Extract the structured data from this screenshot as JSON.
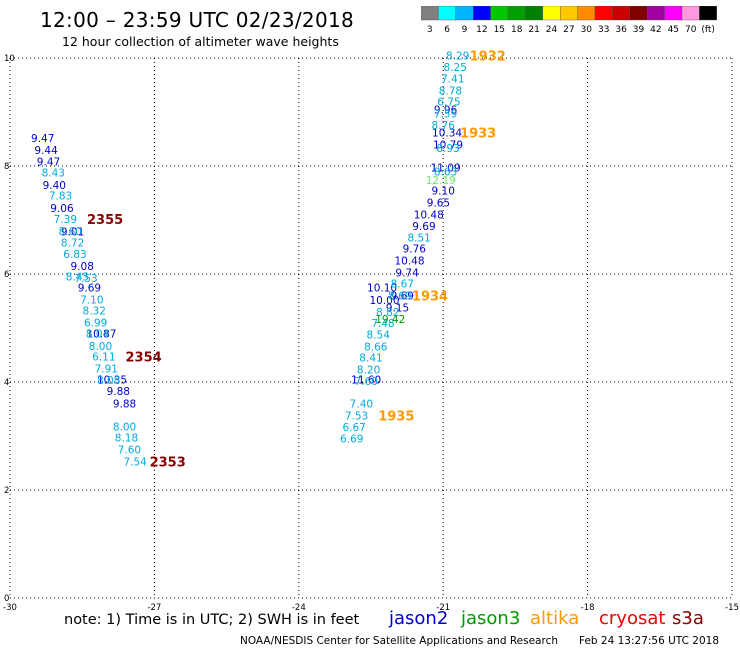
{
  "header": {
    "title": "12:00 – 23:59 UTC 02/23/2018",
    "subtitle": "12 hour collection of altimeter wave heights"
  },
  "colorbar": {
    "colors": [
      "#7f7f7f",
      "#00ffff",
      "#00b4ff",
      "#0000ff",
      "#00c800",
      "#00a000",
      "#008000",
      "#ffff00",
      "#ffc800",
      "#ff8c00",
      "#ff0000",
      "#c80000",
      "#800000",
      "#a000a0",
      "#ff00ff",
      "#ff99dd",
      "#000000"
    ],
    "labels": [
      "3",
      "6",
      "9",
      "12",
      "15",
      "18",
      "21",
      "24",
      "27",
      "30",
      "33",
      "36",
      "39",
      "42",
      "45",
      "70",
      "(ft)"
    ]
  },
  "footer": {
    "note": "note:  1) Time is in UTC;  2) SWH is in feet",
    "credit": "NOAA/NESDIS Center for Satellite Applications and Research",
    "timestamp": "Feb 24 13:27:56 UTC 2018"
  },
  "satellites": [
    {
      "name": "jason2",
      "color": "#0000cc"
    },
    {
      "name": "jason3",
      "color": "#009900"
    },
    {
      "name": "altika",
      "color": "#ff9900"
    },
    {
      "name": "cryosat",
      "color": "#ee0000"
    },
    {
      "name": "s3a",
      "color": "#880000"
    }
  ],
  "chart_data": {
    "type": "scatter",
    "title": "12:00 – 23:59 UTC 02/23/2018",
    "subtitle": "12 hour collection of altimeter wave heights",
    "xlabel": "",
    "ylabel": "",
    "xlim": [
      -30,
      -15
    ],
    "ylim": [
      0,
      10
    ],
    "x_ticks": [
      "-30",
      "-27",
      "-24",
      "-21",
      "-18",
      "-15"
    ],
    "y_ticks": [
      "0",
      "2",
      "4",
      "6",
      "8",
      "10"
    ],
    "grid": true,
    "series": [
      {
        "name": "jason2",
        "color": "#0000cc",
        "points": [
          {
            "x": -29.32,
            "y": 8.52,
            "v": "9.47"
          },
          {
            "x": -29.25,
            "y": 8.3,
            "v": "9.44"
          },
          {
            "x": -29.2,
            "y": 8.08,
            "v": "9.47"
          },
          {
            "x": -29.08,
            "y": 7.65,
            "v": "9.40"
          },
          {
            "x": -28.92,
            "y": 7.22,
            "v": "9.06"
          },
          {
            "x": -28.7,
            "y": 6.79,
            "v": "9.01"
          },
          {
            "x": -28.5,
            "y": 6.15,
            "v": "9.08"
          },
          {
            "x": -28.35,
            "y": 5.75,
            "v": "9.69"
          },
          {
            "x": -28.1,
            "y": 4.9,
            "v": "10.87"
          },
          {
            "x": -27.88,
            "y": 4.05,
            "v": "10.35"
          },
          {
            "x": -27.75,
            "y": 3.83,
            "v": "9.88"
          },
          {
            "x": -22.27,
            "y": 5.75,
            "v": "10.10"
          },
          {
            "x": -22.22,
            "y": 5.52,
            "v": "10.00"
          },
          {
            "x": -22.6,
            "y": 4.05,
            "v": "11.60"
          },
          {
            "x": -20.95,
            "y": 9.05,
            "v": "9.96"
          },
          {
            "x": -20.92,
            "y": 8.62,
            "v": "10.34"
          },
          {
            "x": -20.9,
            "y": 8.4,
            "v": "10.79"
          },
          {
            "x": -20.95,
            "y": 7.97,
            "v": "11.09"
          },
          {
            "x": -21.0,
            "y": 7.55,
            "v": "9.10"
          },
          {
            "x": -21.1,
            "y": 7.32,
            "v": "9.65"
          },
          {
            "x": -21.3,
            "y": 7.1,
            "v": "10.48"
          },
          {
            "x": -21.4,
            "y": 6.89,
            "v": "9.69"
          },
          {
            "x": -21.6,
            "y": 6.47,
            "v": "9.76"
          },
          {
            "x": -21.7,
            "y": 6.25,
            "v": "10.48"
          },
          {
            "x": -21.75,
            "y": 6.03,
            "v": "9.74"
          },
          {
            "x": -21.85,
            "y": 5.6,
            "v": "9.69"
          },
          {
            "x": -21.95,
            "y": 5.38,
            "v": "9.15"
          },
          {
            "x": -27.62,
            "y": 3.6,
            "v": "9.88"
          }
        ]
      },
      {
        "name": "jason2-light",
        "color": "#00aadd",
        "points": [
          {
            "x": -29.1,
            "y": 7.88,
            "v": "8.43"
          },
          {
            "x": -28.95,
            "y": 7.45,
            "v": "7.83"
          },
          {
            "x": -28.85,
            "y": 7.02,
            "v": "7.39"
          },
          {
            "x": -28.75,
            "y": 6.8,
            "v": "8.60"
          },
          {
            "x": -28.7,
            "y": 6.58,
            "v": "8.72"
          },
          {
            "x": -28.65,
            "y": 6.37,
            "v": "6.83"
          },
          {
            "x": -28.6,
            "y": 5.95,
            "v": "8.45"
          },
          {
            "x": -28.42,
            "y": 5.93,
            "v": "7.53"
          },
          {
            "x": -28.3,
            "y": 5.53,
            "v": "7.10"
          },
          {
            "x": -28.25,
            "y": 5.32,
            "v": "8.32"
          },
          {
            "x": -28.22,
            "y": 5.1,
            "v": "6.99"
          },
          {
            "x": -28.18,
            "y": 4.9,
            "v": "8.04"
          },
          {
            "x": -28.12,
            "y": 4.67,
            "v": "8.00"
          },
          {
            "x": -28.05,
            "y": 4.47,
            "v": "6.11"
          },
          {
            "x": -28.0,
            "y": 4.25,
            "v": "7.91"
          },
          {
            "x": -27.95,
            "y": 4.04,
            "v": "8.08"
          },
          {
            "x": -27.62,
            "y": 3.18,
            "v": "8.00"
          },
          {
            "x": -27.58,
            "y": 2.97,
            "v": "8.18"
          },
          {
            "x": -27.52,
            "y": 2.75,
            "v": "7.60"
          },
          {
            "x": -27.4,
            "y": 2.53,
            "v": "7.54"
          },
          {
            "x": -22.15,
            "y": 5.3,
            "v": "8.82"
          },
          {
            "x": -22.25,
            "y": 5.09,
            "v": "7.48"
          },
          {
            "x": -22.35,
            "y": 4.88,
            "v": "8.54"
          },
          {
            "x": -22.4,
            "y": 4.66,
            "v": "8.66"
          },
          {
            "x": -22.5,
            "y": 4.45,
            "v": "8.41"
          },
          {
            "x": -22.55,
            "y": 4.23,
            "v": "8.20"
          },
          {
            "x": -22.6,
            "y": 4.02,
            "v": "7.60"
          },
          {
            "x": -22.7,
            "y": 3.6,
            "v": "7.40"
          },
          {
            "x": -22.8,
            "y": 3.38,
            "v": "7.53"
          },
          {
            "x": -22.85,
            "y": 3.17,
            "v": "6.67"
          },
          {
            "x": -22.9,
            "y": 2.95,
            "v": "6.69"
          },
          {
            "x": -20.7,
            "y": 10.05,
            "v": "8.29"
          },
          {
            "x": -20.75,
            "y": 9.83,
            "v": "8.25"
          },
          {
            "x": -20.8,
            "y": 9.62,
            "v": "7.41"
          },
          {
            "x": -20.85,
            "y": 9.4,
            "v": "8.78"
          },
          {
            "x": -20.88,
            "y": 9.19,
            "v": "6.75"
          },
          {
            "x": -20.95,
            "y": 8.97,
            "v": "7.59"
          },
          {
            "x": -21.0,
            "y": 8.76,
            "v": "8.76"
          },
          {
            "x": -20.9,
            "y": 8.33,
            "v": "8.93"
          },
          {
            "x": -20.95,
            "y": 7.9,
            "v": "8.63"
          },
          {
            "x": -21.5,
            "y": 6.68,
            "v": "8.51"
          },
          {
            "x": -21.85,
            "y": 5.82,
            "v": "8.67"
          },
          {
            "x": -21.9,
            "y": 5.6,
            "v": "8.69"
          }
        ]
      },
      {
        "name": "jason3",
        "color": "#009900",
        "points": [
          {
            "x": -22.1,
            "y": 5.17,
            "v": "19.42"
          }
        ]
      },
      {
        "name": "jason3-light",
        "color": "#66ee66",
        "points": [
          {
            "x": -21.05,
            "y": 7.74,
            "v": "12.19"
          }
        ]
      }
    ],
    "time_labels": [
      {
        "x": -20.45,
        "y": 10.05,
        "v": "1932",
        "color": "#ff9900"
      },
      {
        "x": -20.65,
        "y": 8.62,
        "v": "1933",
        "color": "#ff9900"
      },
      {
        "x": -21.65,
        "y": 5.6,
        "v": "1934",
        "color": "#ff9900"
      },
      {
        "x": -22.35,
        "y": 3.38,
        "v": "1935",
        "color": "#ff9900"
      },
      {
        "x": -28.4,
        "y": 7.02,
        "v": "2355",
        "color": "#880000"
      },
      {
        "x": -27.6,
        "y": 4.47,
        "v": "2354",
        "color": "#880000"
      },
      {
        "x": -27.1,
        "y": 2.53,
        "v": "2353",
        "color": "#880000"
      }
    ]
  }
}
